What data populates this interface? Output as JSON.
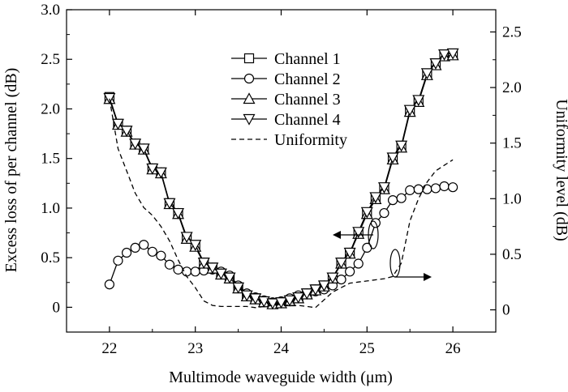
{
  "chart_data": {
    "type": "line",
    "xlabel": "Multimode waveguide width (μm)",
    "ylabel_left": "Excess loss of per channel (dB)",
    "ylabel_right": "Uniformity level (dB)",
    "xlim": [
      21.5,
      26.5
    ],
    "ylim_left": [
      -0.25,
      3.0
    ],
    "ylim_right": [
      -0.2,
      2.7
    ],
    "x_ticks": [
      "22",
      "23",
      "24",
      "25",
      "26"
    ],
    "y_ticks_left": [
      "0",
      "0.5",
      "1.0",
      "1.5",
      "2.0",
      "2.5",
      "3.0"
    ],
    "y_ticks_right": [
      "0",
      "0.5",
      "1.0",
      "1.5",
      "2.0",
      "2.5"
    ],
    "legend_position": "top-center",
    "grid": false,
    "series": [
      {
        "name": "Channel 1",
        "axis": "left",
        "marker": "square",
        "x": [
          22.0,
          22.1,
          22.2,
          22.3,
          22.4,
          22.5,
          22.6,
          22.7,
          22.8,
          22.9,
          23.0,
          23.1,
          23.2,
          23.3,
          23.4,
          23.5,
          23.6,
          23.7,
          23.8,
          23.9,
          24.0,
          24.1,
          24.2,
          24.3,
          24.4,
          24.5,
          24.6,
          24.7,
          24.8,
          24.9,
          25.0,
          25.1,
          25.2,
          25.3,
          25.4,
          25.5,
          25.6,
          25.7,
          25.8,
          25.9,
          26.0
        ],
        "values": [
          2.12,
          1.85,
          1.78,
          1.65,
          1.6,
          1.4,
          1.36,
          1.05,
          0.95,
          0.7,
          0.62,
          0.45,
          0.4,
          0.34,
          0.3,
          0.2,
          0.12,
          0.09,
          0.06,
          0.04,
          0.05,
          0.07,
          0.1,
          0.14,
          0.18,
          0.22,
          0.3,
          0.45,
          0.55,
          0.75,
          0.95,
          1.1,
          1.2,
          1.5,
          1.62,
          1.98,
          2.08,
          2.35,
          2.45,
          2.54,
          2.55
        ]
      },
      {
        "name": "Channel 2",
        "axis": "left",
        "marker": "circle",
        "x": [
          22.0,
          22.1,
          22.2,
          22.3,
          22.4,
          22.5,
          22.6,
          22.7,
          22.8,
          22.9,
          23.0,
          23.1,
          23.2,
          23.3,
          23.4,
          23.5,
          23.6,
          23.7,
          23.8,
          23.9,
          24.0,
          24.1,
          24.2,
          24.3,
          24.4,
          24.5,
          24.6,
          24.7,
          24.8,
          24.9,
          25.0,
          25.1,
          25.2,
          25.3,
          25.4,
          25.5,
          25.6,
          25.7,
          25.8,
          25.9,
          26.0
        ],
        "values": [
          0.23,
          0.47,
          0.55,
          0.6,
          0.63,
          0.56,
          0.52,
          0.43,
          0.38,
          0.36,
          0.36,
          0.37,
          0.38,
          0.36,
          0.32,
          0.22,
          0.14,
          0.1,
          0.07,
          0.05,
          0.06,
          0.09,
          0.12,
          0.14,
          0.16,
          0.18,
          0.22,
          0.28,
          0.36,
          0.44,
          0.6,
          0.85,
          0.95,
          1.08,
          1.1,
          1.18,
          1.19,
          1.19,
          1.2,
          1.22,
          1.21
        ]
      },
      {
        "name": "Channel 3",
        "axis": "left",
        "marker": "triangle-up",
        "x": [
          22.0,
          22.1,
          22.2,
          22.3,
          22.4,
          22.5,
          22.6,
          22.7,
          22.8,
          22.9,
          23.0,
          23.1,
          23.2,
          23.3,
          23.4,
          23.5,
          23.6,
          23.7,
          23.8,
          23.9,
          24.0,
          24.1,
          24.2,
          24.3,
          24.4,
          24.5,
          24.6,
          24.7,
          24.8,
          24.9,
          25.0,
          25.1,
          25.2,
          25.3,
          25.4,
          25.5,
          25.6,
          25.7,
          25.8,
          25.9,
          26.0
        ],
        "values": [
          2.1,
          1.84,
          1.77,
          1.64,
          1.59,
          1.39,
          1.35,
          1.04,
          0.94,
          0.69,
          0.61,
          0.44,
          0.39,
          0.33,
          0.29,
          0.19,
          0.11,
          0.08,
          0.05,
          0.03,
          0.04,
          0.06,
          0.09,
          0.13,
          0.17,
          0.21,
          0.29,
          0.44,
          0.54,
          0.74,
          0.94,
          1.09,
          1.19,
          1.49,
          1.61,
          1.97,
          2.07,
          2.34,
          2.44,
          2.53,
          2.54
        ]
      },
      {
        "name": "Channel 4",
        "axis": "left",
        "marker": "triangle-down",
        "x": [
          22.0,
          22.1,
          22.2,
          22.3,
          22.4,
          22.5,
          22.6,
          22.7,
          22.8,
          22.9,
          23.0,
          23.1,
          23.2,
          23.3,
          23.4,
          23.5,
          23.6,
          23.7,
          23.8,
          23.9,
          24.0,
          24.1,
          24.2,
          24.3,
          24.4,
          24.5,
          24.6,
          24.7,
          24.8,
          24.9,
          25.0,
          25.1,
          25.2,
          25.3,
          25.4,
          25.5,
          25.6,
          25.7,
          25.8,
          25.9,
          26.0
        ],
        "values": [
          2.11,
          1.85,
          1.78,
          1.65,
          1.6,
          1.4,
          1.36,
          1.05,
          0.95,
          0.71,
          0.63,
          0.45,
          0.4,
          0.34,
          0.3,
          0.2,
          0.12,
          0.09,
          0.06,
          0.04,
          0.05,
          0.07,
          0.1,
          0.14,
          0.18,
          0.22,
          0.3,
          0.45,
          0.55,
          0.76,
          0.96,
          1.11,
          1.21,
          1.51,
          1.63,
          1.99,
          2.09,
          2.36,
          2.46,
          2.55,
          2.56
        ]
      },
      {
        "name": "Uniformity",
        "axis": "right",
        "style": "dashed",
        "x": [
          22.0,
          22.1,
          22.2,
          22.3,
          22.4,
          22.5,
          22.6,
          22.7,
          22.8,
          22.9,
          23.0,
          23.1,
          23.2,
          23.3,
          23.4,
          23.5,
          23.6,
          23.7,
          23.8,
          23.9,
          24.0,
          24.1,
          24.2,
          24.3,
          24.4,
          24.5,
          24.6,
          24.7,
          24.8,
          24.9,
          25.0,
          25.1,
          25.2,
          25.3,
          25.4,
          25.5,
          25.6,
          25.7,
          25.8,
          25.9,
          26.0
        ],
        "values": [
          1.9,
          1.45,
          1.25,
          1.05,
          0.92,
          0.85,
          0.75,
          0.62,
          0.45,
          0.3,
          0.2,
          0.08,
          0.04,
          0.03,
          0.03,
          0.03,
          0.03,
          0.02,
          0.03,
          0.04,
          0.05,
          0.04,
          0.04,
          0.03,
          0.02,
          0.09,
          0.16,
          0.2,
          0.24,
          0.25,
          0.26,
          0.27,
          0.28,
          0.3,
          0.42,
          0.8,
          1.0,
          1.15,
          1.25,
          1.3,
          1.35
        ]
      }
    ]
  }
}
